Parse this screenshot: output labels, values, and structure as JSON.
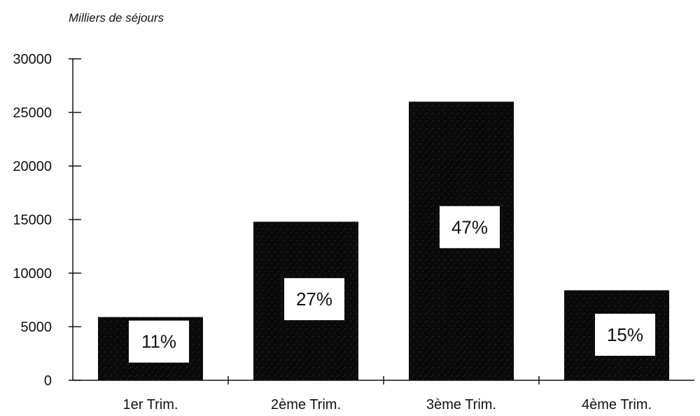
{
  "chart_data": {
    "type": "bar",
    "ylabel": "Milliers de séjours",
    "xlabel": "",
    "title": "",
    "categories": [
      "1er Trim.",
      "2ème Trim.",
      "3ème Trim.",
      "4ème Trim."
    ],
    "values": [
      5900,
      14800,
      26000,
      8400
    ],
    "data_labels": [
      "11%",
      "27%",
      "47%",
      "15%"
    ],
    "ylim": [
      0,
      30000
    ],
    "yticks": [
      0,
      5000,
      10000,
      15000,
      20000,
      25000,
      30000
    ],
    "grid": false,
    "legend": "none",
    "colors": {
      "bar": "#0a0a0a",
      "label_box": "#ffffff",
      "axis": "#111111",
      "text": "#111111"
    }
  }
}
